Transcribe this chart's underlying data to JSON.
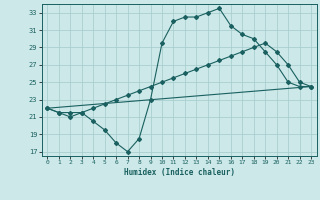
{
  "xlabel": "Humidex (Indice chaleur)",
  "bg_color": "#cce8e8",
  "grid_color": "#aacece",
  "line_color": "#1a6060",
  "xlim": [
    -0.5,
    23.5
  ],
  "ylim": [
    16.5,
    34
  ],
  "yticks": [
    17,
    19,
    21,
    23,
    25,
    27,
    29,
    31,
    33
  ],
  "xticks": [
    0,
    1,
    2,
    3,
    4,
    5,
    6,
    7,
    8,
    9,
    10,
    11,
    12,
    13,
    14,
    15,
    16,
    17,
    18,
    19,
    20,
    21,
    22,
    23
  ],
  "line1_x": [
    0,
    1,
    2,
    3,
    4,
    5,
    6,
    7,
    8,
    9,
    10,
    11,
    12,
    13,
    14,
    15,
    16,
    17,
    18,
    19,
    20,
    21,
    22,
    23
  ],
  "line1_y": [
    22,
    21.5,
    21,
    21.5,
    20.5,
    19.5,
    18,
    17,
    18.5,
    23,
    29.5,
    32,
    32.5,
    32.5,
    33,
    33.5,
    31.5,
    30.5,
    30,
    28.5,
    27,
    25,
    24.5,
    24.5
  ],
  "line2_x": [
    0,
    1,
    2,
    3,
    4,
    5,
    6,
    7,
    8,
    9,
    10,
    11,
    12,
    13,
    14,
    15,
    16,
    17,
    18,
    19,
    20,
    21,
    22,
    23
  ],
  "line2_y": [
    22,
    21.5,
    21.5,
    21.5,
    22,
    22.5,
    23,
    23.5,
    24,
    24.5,
    25,
    25.5,
    26,
    26.5,
    27,
    27.5,
    28,
    28.5,
    29,
    29.5,
    28.5,
    27,
    25,
    24.5
  ],
  "line3_x": [
    0,
    23
  ],
  "line3_y": [
    22,
    24.5
  ]
}
